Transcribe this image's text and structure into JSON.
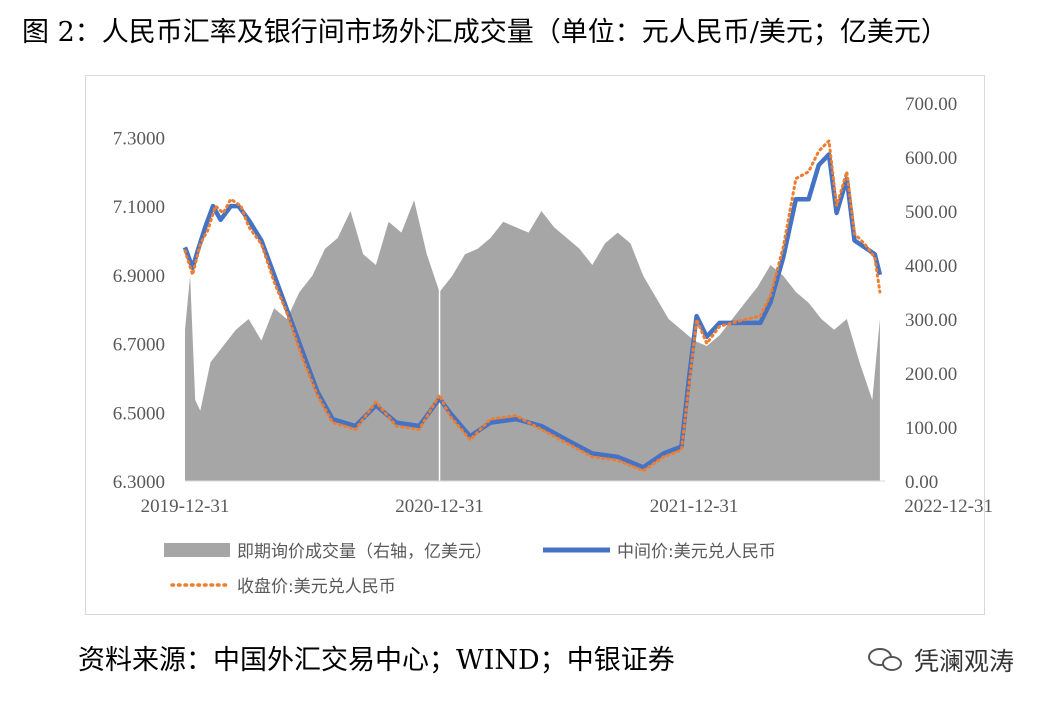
{
  "title": "图 2：人民币汇率及银行间市场外汇成交量（单位：元人民币/美元；亿美元）",
  "source": "资料来源：中国外汇交易中心；WIND；中银证券",
  "brand": {
    "name": "凭澜观涛",
    "icon": "wechat-icon"
  },
  "chart_data": {
    "type": "area+line",
    "x_ticks": [
      "2019-12-31",
      "2020-12-31",
      "2021-12-31",
      "2022-12-31"
    ],
    "y_left": {
      "min": 6.3,
      "max": 7.4,
      "ticks": [
        "6.3000",
        "6.5000",
        "6.7000",
        "6.9000",
        "7.1000",
        "7.3000"
      ]
    },
    "y_right": {
      "min": 0,
      "max": 700,
      "ticks": [
        "0.00",
        "100.00",
        "200.00",
        "300.00",
        "400.00",
        "500.00",
        "600.00",
        "700.00"
      ]
    },
    "legend": [
      {
        "label": "即期询价成交量（右轴，亿美元）",
        "color": "#a6a6a6",
        "style": "area"
      },
      {
        "label": "中间价:美元兑人民币",
        "color": "#4472c4",
        "style": "line"
      },
      {
        "label": "收盘价:美元兑人民币",
        "color": "#ed7d31",
        "style": "dotted"
      }
    ],
    "series": [
      {
        "name": "中间价:美元兑人民币",
        "axis": "left",
        "points": [
          [
            0.0,
            6.98
          ],
          [
            0.03,
            6.92
          ],
          [
            0.05,
            6.97
          ],
          [
            0.08,
            7.04
          ],
          [
            0.11,
            7.1
          ],
          [
            0.14,
            7.06
          ],
          [
            0.18,
            7.1
          ],
          [
            0.21,
            7.1
          ],
          [
            0.25,
            7.06
          ],
          [
            0.3,
            7.0
          ],
          [
            0.35,
            6.9
          ],
          [
            0.4,
            6.8
          ],
          [
            0.46,
            6.68
          ],
          [
            0.52,
            6.56
          ],
          [
            0.58,
            6.48
          ],
          [
            0.67,
            6.46
          ],
          [
            0.75,
            6.52
          ],
          [
            0.83,
            6.47
          ],
          [
            0.92,
            6.46
          ],
          [
            1.0,
            6.54
          ],
          [
            1.04,
            6.5
          ],
          [
            1.12,
            6.43
          ],
          [
            1.2,
            6.47
          ],
          [
            1.3,
            6.48
          ],
          [
            1.4,
            6.46
          ],
          [
            1.5,
            6.42
          ],
          [
            1.6,
            6.38
          ],
          [
            1.7,
            6.37
          ],
          [
            1.8,
            6.34
          ],
          [
            1.88,
            6.38
          ],
          [
            1.95,
            6.4
          ],
          [
            1.98,
            6.6
          ],
          [
            2.01,
            6.78
          ],
          [
            2.05,
            6.72
          ],
          [
            2.1,
            6.76
          ],
          [
            2.2,
            6.76
          ],
          [
            2.26,
            6.76
          ],
          [
            2.3,
            6.82
          ],
          [
            2.35,
            6.95
          ],
          [
            2.4,
            7.12
          ],
          [
            2.45,
            7.12
          ],
          [
            2.49,
            7.22
          ],
          [
            2.53,
            7.25
          ],
          [
            2.56,
            7.08
          ],
          [
            2.6,
            7.18
          ],
          [
            2.63,
            7.0
          ],
          [
            2.67,
            6.98
          ],
          [
            2.71,
            6.96
          ],
          [
            2.73,
            6.9
          ]
        ]
      },
      {
        "name": "收盘价:美元兑人民币",
        "axis": "left",
        "points": [
          [
            0.0,
            6.97
          ],
          [
            0.03,
            6.9
          ],
          [
            0.06,
            6.99
          ],
          [
            0.09,
            7.03
          ],
          [
            0.12,
            7.1
          ],
          [
            0.15,
            7.08
          ],
          [
            0.18,
            7.12
          ],
          [
            0.22,
            7.1
          ],
          [
            0.25,
            7.04
          ],
          [
            0.3,
            6.99
          ],
          [
            0.35,
            6.88
          ],
          [
            0.4,
            6.79
          ],
          [
            0.46,
            6.66
          ],
          [
            0.52,
            6.55
          ],
          [
            0.58,
            6.47
          ],
          [
            0.67,
            6.45
          ],
          [
            0.75,
            6.53
          ],
          [
            0.83,
            6.46
          ],
          [
            0.92,
            6.45
          ],
          [
            1.0,
            6.55
          ],
          [
            1.04,
            6.49
          ],
          [
            1.12,
            6.42
          ],
          [
            1.2,
            6.48
          ],
          [
            1.3,
            6.49
          ],
          [
            1.4,
            6.45
          ],
          [
            1.5,
            6.41
          ],
          [
            1.6,
            6.37
          ],
          [
            1.7,
            6.36
          ],
          [
            1.8,
            6.33
          ],
          [
            1.88,
            6.37
          ],
          [
            1.95,
            6.39
          ],
          [
            1.98,
            6.58
          ],
          [
            2.01,
            6.77
          ],
          [
            2.05,
            6.7
          ],
          [
            2.1,
            6.75
          ],
          [
            2.2,
            6.77
          ],
          [
            2.26,
            6.78
          ],
          [
            2.3,
            6.84
          ],
          [
            2.35,
            6.98
          ],
          [
            2.4,
            7.18
          ],
          [
            2.45,
            7.2
          ],
          [
            2.49,
            7.26
          ],
          [
            2.53,
            7.29
          ],
          [
            2.56,
            7.1
          ],
          [
            2.6,
            7.2
          ],
          [
            2.63,
            7.02
          ],
          [
            2.67,
            6.99
          ],
          [
            2.71,
            6.95
          ],
          [
            2.73,
            6.85
          ]
        ]
      },
      {
        "name": "即期询价成交量（右轴，亿美元）",
        "axis": "right",
        "points": [
          [
            0.0,
            280
          ],
          [
            0.02,
            380
          ],
          [
            0.04,
            150
          ],
          [
            0.06,
            130
          ],
          [
            0.1,
            220
          ],
          [
            0.15,
            250
          ],
          [
            0.2,
            280
          ],
          [
            0.25,
            300
          ],
          [
            0.3,
            260
          ],
          [
            0.35,
            320
          ],
          [
            0.4,
            300
          ],
          [
            0.45,
            350
          ],
          [
            0.5,
            380
          ],
          [
            0.55,
            430
          ],
          [
            0.6,
            450
          ],
          [
            0.65,
            500
          ],
          [
            0.7,
            420
          ],
          [
            0.75,
            400
          ],
          [
            0.8,
            480
          ],
          [
            0.85,
            460
          ],
          [
            0.9,
            520
          ],
          [
            0.95,
            420
          ],
          [
            1.0,
            350
          ],
          [
            1.05,
            380
          ],
          [
            1.1,
            420
          ],
          [
            1.15,
            430
          ],
          [
            1.2,
            450
          ],
          [
            1.25,
            480
          ],
          [
            1.3,
            470
          ],
          [
            1.35,
            460
          ],
          [
            1.4,
            500
          ],
          [
            1.45,
            470
          ],
          [
            1.5,
            450
          ],
          [
            1.55,
            430
          ],
          [
            1.6,
            400
          ],
          [
            1.65,
            440
          ],
          [
            1.7,
            460
          ],
          [
            1.75,
            440
          ],
          [
            1.8,
            380
          ],
          [
            1.85,
            340
          ],
          [
            1.9,
            300
          ],
          [
            1.95,
            280
          ],
          [
            2.0,
            260
          ],
          [
            2.05,
            250
          ],
          [
            2.1,
            270
          ],
          [
            2.15,
            300
          ],
          [
            2.2,
            330
          ],
          [
            2.25,
            360
          ],
          [
            2.3,
            400
          ],
          [
            2.35,
            380
          ],
          [
            2.4,
            350
          ],
          [
            2.45,
            330
          ],
          [
            2.5,
            300
          ],
          [
            2.55,
            280
          ],
          [
            2.6,
            300
          ],
          [
            2.65,
            220
          ],
          [
            2.7,
            150
          ],
          [
            2.73,
            300
          ]
        ]
      }
    ]
  }
}
